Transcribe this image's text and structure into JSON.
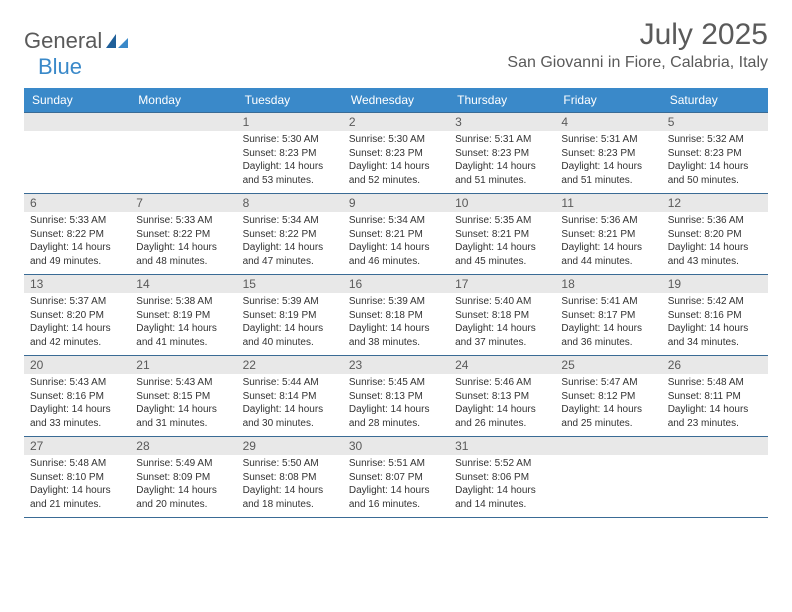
{
  "brand": {
    "part1": "General",
    "part2": "Blue"
  },
  "title": {
    "month": "July 2025",
    "location": "San Giovanni in Fiore, Calabria, Italy"
  },
  "style": {
    "header_bg": "#3a89c9",
    "header_text": "#ffffff",
    "week_border": "#3a6b95",
    "daynum_bg": "#e8e8e8",
    "daynum_text": "#5a5a5a",
    "body_text": "#333333",
    "logo_text": "#5a5a5a",
    "logo_accent": "#3a89c9",
    "page_bg": "#ffffff",
    "font_family": "Arial, Helvetica, sans-serif",
    "title_fontsize": 30,
    "location_fontsize": 16,
    "weekday_fontsize": 12,
    "body_fontsize": 10
  },
  "weekdays": [
    "Sunday",
    "Monday",
    "Tuesday",
    "Wednesday",
    "Thursday",
    "Friday",
    "Saturday"
  ],
  "weeks": [
    [
      null,
      null,
      {
        "n": "1",
        "sr": "5:30 AM",
        "ss": "8:23 PM",
        "dl": "14 hours and 53 minutes."
      },
      {
        "n": "2",
        "sr": "5:30 AM",
        "ss": "8:23 PM",
        "dl": "14 hours and 52 minutes."
      },
      {
        "n": "3",
        "sr": "5:31 AM",
        "ss": "8:23 PM",
        "dl": "14 hours and 51 minutes."
      },
      {
        "n": "4",
        "sr": "5:31 AM",
        "ss": "8:23 PM",
        "dl": "14 hours and 51 minutes."
      },
      {
        "n": "5",
        "sr": "5:32 AM",
        "ss": "8:23 PM",
        "dl": "14 hours and 50 minutes."
      }
    ],
    [
      {
        "n": "6",
        "sr": "5:33 AM",
        "ss": "8:22 PM",
        "dl": "14 hours and 49 minutes."
      },
      {
        "n": "7",
        "sr": "5:33 AM",
        "ss": "8:22 PM",
        "dl": "14 hours and 48 minutes."
      },
      {
        "n": "8",
        "sr": "5:34 AM",
        "ss": "8:22 PM",
        "dl": "14 hours and 47 minutes."
      },
      {
        "n": "9",
        "sr": "5:34 AM",
        "ss": "8:21 PM",
        "dl": "14 hours and 46 minutes."
      },
      {
        "n": "10",
        "sr": "5:35 AM",
        "ss": "8:21 PM",
        "dl": "14 hours and 45 minutes."
      },
      {
        "n": "11",
        "sr": "5:36 AM",
        "ss": "8:21 PM",
        "dl": "14 hours and 44 minutes."
      },
      {
        "n": "12",
        "sr": "5:36 AM",
        "ss": "8:20 PM",
        "dl": "14 hours and 43 minutes."
      }
    ],
    [
      {
        "n": "13",
        "sr": "5:37 AM",
        "ss": "8:20 PM",
        "dl": "14 hours and 42 minutes."
      },
      {
        "n": "14",
        "sr": "5:38 AM",
        "ss": "8:19 PM",
        "dl": "14 hours and 41 minutes."
      },
      {
        "n": "15",
        "sr": "5:39 AM",
        "ss": "8:19 PM",
        "dl": "14 hours and 40 minutes."
      },
      {
        "n": "16",
        "sr": "5:39 AM",
        "ss": "8:18 PM",
        "dl": "14 hours and 38 minutes."
      },
      {
        "n": "17",
        "sr": "5:40 AM",
        "ss": "8:18 PM",
        "dl": "14 hours and 37 minutes."
      },
      {
        "n": "18",
        "sr": "5:41 AM",
        "ss": "8:17 PM",
        "dl": "14 hours and 36 minutes."
      },
      {
        "n": "19",
        "sr": "5:42 AM",
        "ss": "8:16 PM",
        "dl": "14 hours and 34 minutes."
      }
    ],
    [
      {
        "n": "20",
        "sr": "5:43 AM",
        "ss": "8:16 PM",
        "dl": "14 hours and 33 minutes."
      },
      {
        "n": "21",
        "sr": "5:43 AM",
        "ss": "8:15 PM",
        "dl": "14 hours and 31 minutes."
      },
      {
        "n": "22",
        "sr": "5:44 AM",
        "ss": "8:14 PM",
        "dl": "14 hours and 30 minutes."
      },
      {
        "n": "23",
        "sr": "5:45 AM",
        "ss": "8:13 PM",
        "dl": "14 hours and 28 minutes."
      },
      {
        "n": "24",
        "sr": "5:46 AM",
        "ss": "8:13 PM",
        "dl": "14 hours and 26 minutes."
      },
      {
        "n": "25",
        "sr": "5:47 AM",
        "ss": "8:12 PM",
        "dl": "14 hours and 25 minutes."
      },
      {
        "n": "26",
        "sr": "5:48 AM",
        "ss": "8:11 PM",
        "dl": "14 hours and 23 minutes."
      }
    ],
    [
      {
        "n": "27",
        "sr": "5:48 AM",
        "ss": "8:10 PM",
        "dl": "14 hours and 21 minutes."
      },
      {
        "n": "28",
        "sr": "5:49 AM",
        "ss": "8:09 PM",
        "dl": "14 hours and 20 minutes."
      },
      {
        "n": "29",
        "sr": "5:50 AM",
        "ss": "8:08 PM",
        "dl": "14 hours and 18 minutes."
      },
      {
        "n": "30",
        "sr": "5:51 AM",
        "ss": "8:07 PM",
        "dl": "14 hours and 16 minutes."
      },
      {
        "n": "31",
        "sr": "5:52 AM",
        "ss": "8:06 PM",
        "dl": "14 hours and 14 minutes."
      },
      null,
      null
    ]
  ],
  "labels": {
    "sunrise": "Sunrise:",
    "sunset": "Sunset:",
    "daylight": "Daylight:"
  }
}
